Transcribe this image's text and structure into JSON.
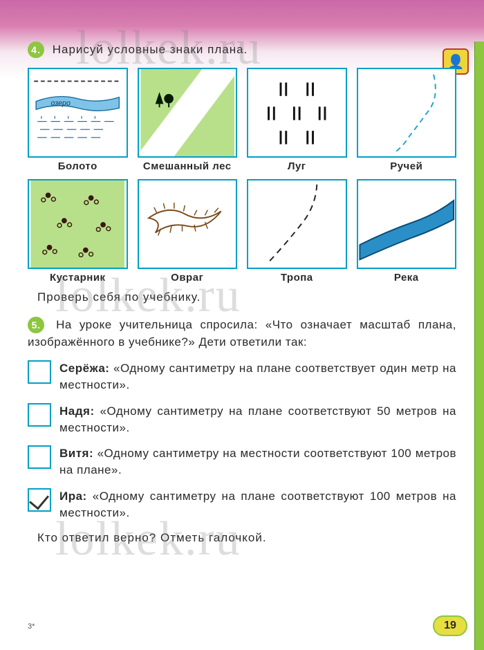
{
  "watermark": "lolkek.ru",
  "task4": {
    "num": "4.",
    "title": "Нарисуй условные знаки плана."
  },
  "signs": [
    {
      "label": "Болото"
    },
    {
      "label": "Смешанный лес"
    },
    {
      "label": "Луг"
    },
    {
      "label": "Ручей"
    },
    {
      "label": "Кустарник"
    },
    {
      "label": "Овраг"
    },
    {
      "label": "Тропа"
    },
    {
      "label": "Река"
    }
  ],
  "checkYourself": "Проверь себя по учебнику.",
  "task5": {
    "num": "5.",
    "intro": "На уроке учительница спросила: «Что означает масштаб плана, изображённого в учебнике?» Дети ответили так:"
  },
  "answers": [
    {
      "name": "Серёжа:",
      "text": "«Одному сантиметру на плане соответствует один метр на местности».",
      "checked": false
    },
    {
      "name": "Надя:",
      "text": "«Одному сантиметру на плане соответствуют 50 метров на местности».",
      "checked": false
    },
    {
      "name": "Витя:",
      "text": "«Одному сантиметру на местности соответствуют 100 метров на плане».",
      "checked": false
    },
    {
      "name": "Ира:",
      "text": "«Одному сантиметру на плане соответствуют 100 метров на местности».",
      "checked": true
    }
  ],
  "finalQ": "Кто ответил верно? Отметь галочкой.",
  "pageNum": "19",
  "footmark": "3*",
  "colors": {
    "accent": "#00a0c6",
    "green": "#8dc63f"
  }
}
